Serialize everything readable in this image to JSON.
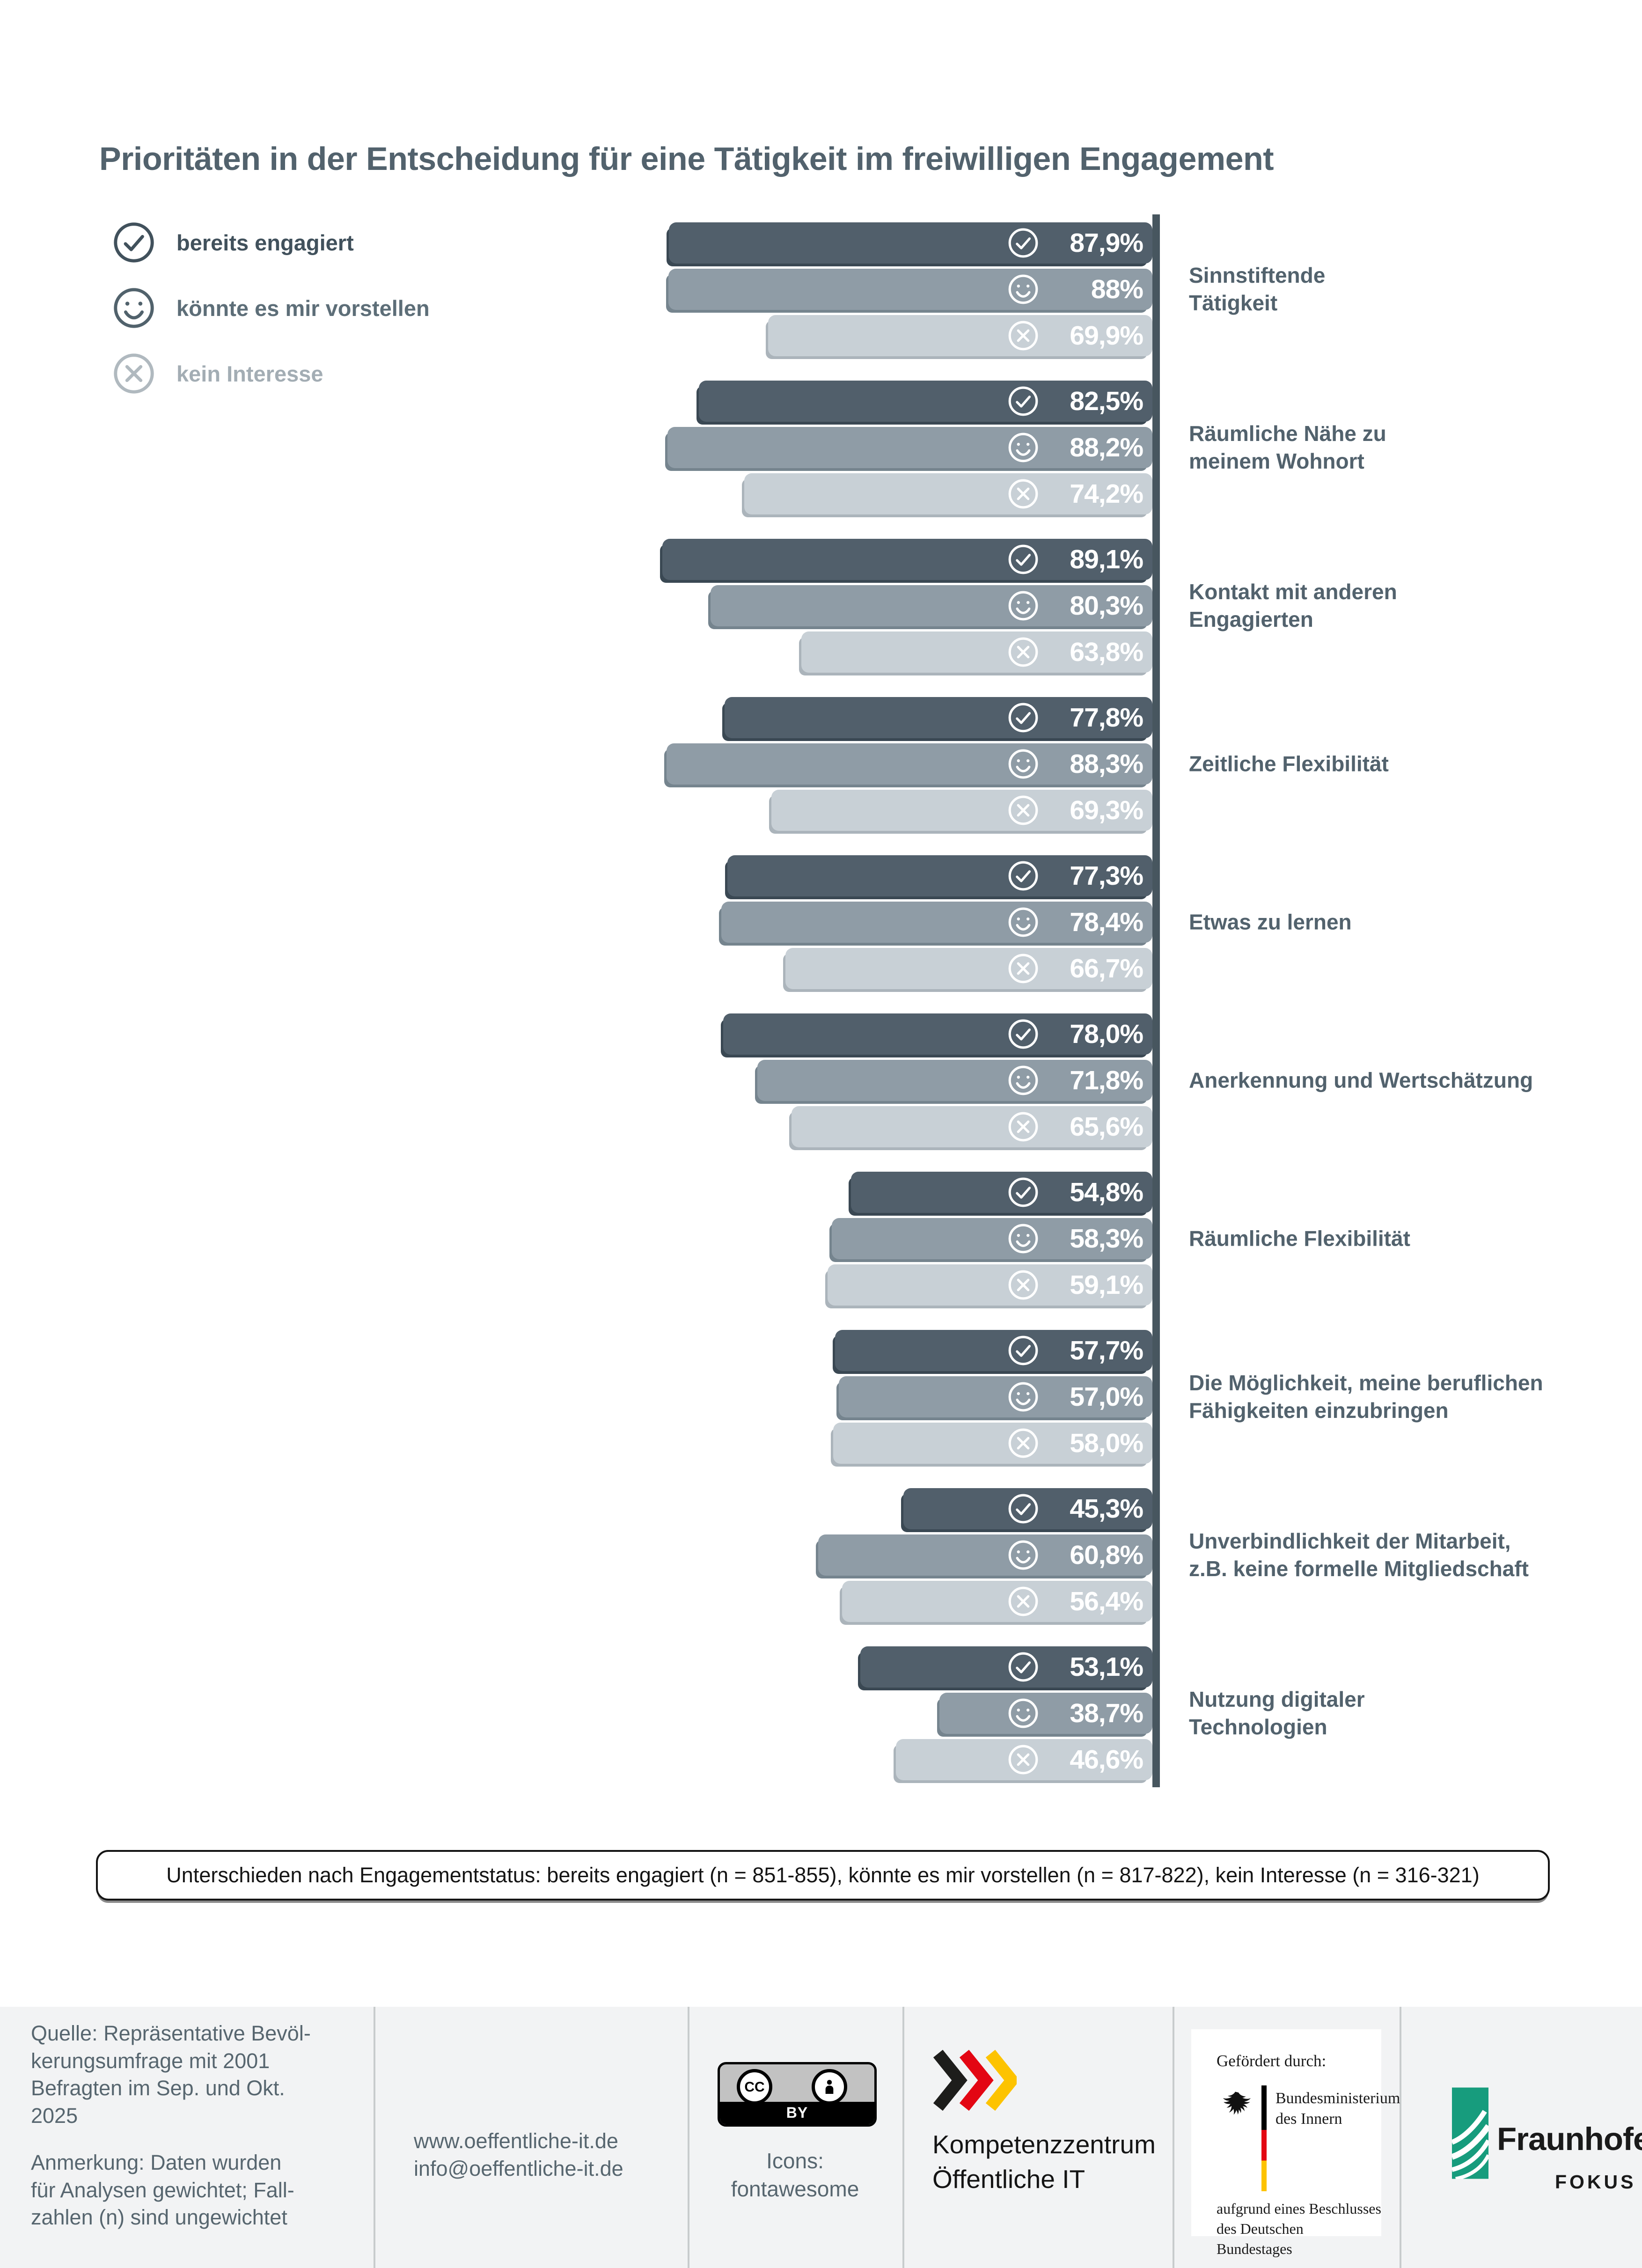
{
  "page": {
    "title": "Prioritäten in der Entscheidung für eine Tätigkeit im freiwilligen Engagement"
  },
  "legend": {
    "items": [
      {
        "label": "bereits engagiert",
        "icon": "check-circle"
      },
      {
        "label": "könnte es mir vorstellen",
        "icon": "smiley"
      },
      {
        "label": "kein Interesse",
        "icon": "x-circle"
      }
    ]
  },
  "chart_data": {
    "type": "bar",
    "orientation": "horizontal",
    "unit": "%",
    "value_axis_max": 100,
    "grid": false,
    "legend_position": "top-left",
    "categories": [
      "Sinnstiftende\nTätigkeit",
      "Räumliche Nähe zu\nmeinem Wohnort",
      "Kontakt mit anderen\nEngagierten",
      "Zeitliche Flexibilität",
      "Etwas zu lernen",
      "Anerkennung und Wertschätzung",
      "Räumliche Flexibilität",
      "Die Möglichkeit, meine beruflichen\nFähigkeiten einzubringen",
      "Unverbindlichkeit der Mitarbeit,\nz.B. keine formelle Mitgliedschaft",
      "Nutzung digitaler\nTechnologien"
    ],
    "series": [
      {
        "name": "bereits engagiert",
        "key": "bereits-engagiert",
        "icon": "check-circle",
        "color": "#515f6b",
        "values": [
          87.9,
          82.5,
          89.1,
          77.8,
          77.3,
          78.0,
          54.8,
          57.7,
          45.3,
          53.1
        ],
        "labels": [
          "87,9%",
          "82,5%",
          "89,1%",
          "77,8%",
          "77,3%",
          "78,0%",
          "54,8%",
          "57,7%",
          "45,3%",
          "53,1%"
        ]
      },
      {
        "name": "könnte es mir vorstellen",
        "key": "koennte-es-mir-vorstellen",
        "icon": "smiley",
        "color": "#8f9ca6",
        "values": [
          88,
          88.2,
          80.3,
          88.3,
          78.4,
          71.8,
          58.3,
          57.0,
          60.8,
          38.7
        ],
        "labels": [
          "88%",
          "88,2%",
          "80,3%",
          "88,3%",
          "78,4%",
          "71,8%",
          "58,3%",
          "57,0%",
          "60,8%",
          "38,7%"
        ]
      },
      {
        "name": "kein Interesse",
        "key": "kein-interesse",
        "icon": "x-circle",
        "color": "#c8d0d6",
        "values": [
          69.9,
          74.2,
          63.8,
          69.3,
          66.7,
          65.6,
          59.1,
          58.0,
          56.4,
          46.6
        ],
        "labels": [
          "69,9%",
          "74,2%",
          "63,8%",
          "69,3%",
          "66,7%",
          "65,6%",
          "59,1%",
          "58,0%",
          "56,4%",
          "46,6%"
        ]
      }
    ]
  },
  "footnote": "Unterschieden nach Engagementstatus: bereits engagiert (n = 851-855), könnte es mir vorstellen (n = 817-822), kein Interesse (n = 316-321)",
  "footer": {
    "source": "Quelle: Repräsentative Bevöl-\nkerungsumfrage mit 2001\nBefragten im Sep. und Okt.\n2025",
    "note": "Anmerkung: Daten wurden\nfür Analysen gewichtet; Fall-\nzahlen (n) sind ungewichtet",
    "website": "www.oeffentliche-it.de",
    "email": "info@oeffentliche-it.de",
    "license": {
      "cc_text": "CC",
      "by_text": "BY",
      "icons_credit": "Icons:\nfontawesome"
    },
    "org": {
      "name": "Kompetenzzentrum\nÖffentliche IT",
      "chevron_colors": [
        "#1d1d1b",
        "#e30613",
        "#fdc300"
      ]
    },
    "bmi": {
      "funded_by": "Gefördert durch:",
      "ministry": "Bundesministerium\ndes Innern",
      "basis": "aufgrund eines Beschlusses\ndes Deutschen Bundestages"
    },
    "fraunhofer": {
      "name": "Fraunhofer",
      "sub": "FOKUS",
      "green": "#179c7d"
    }
  }
}
